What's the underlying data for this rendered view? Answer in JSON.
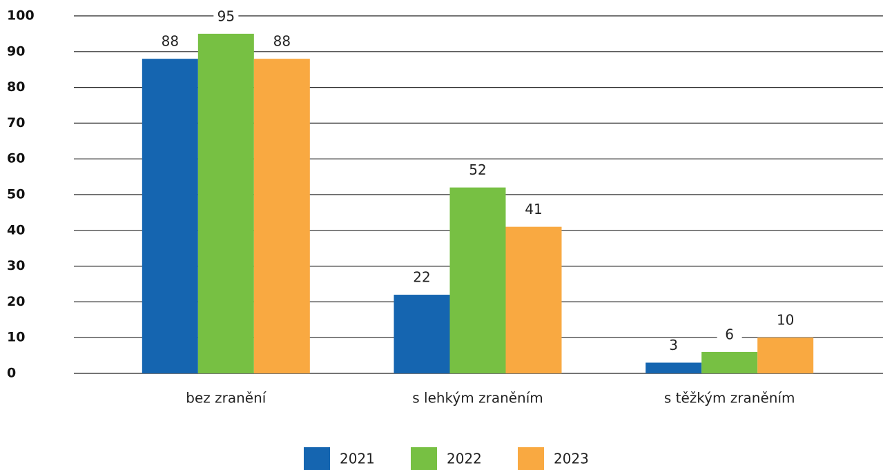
{
  "chart_data": {
    "type": "bar",
    "categories": [
      "bez zranění",
      "s lehkým zraněním",
      "s těžkým zraněním"
    ],
    "series": [
      {
        "name": "2021",
        "color": "#1565b0",
        "values": [
          88,
          22,
          3
        ]
      },
      {
        "name": "2022",
        "color": "#77c043",
        "values": [
          95,
          52,
          6
        ]
      },
      {
        "name": "2023",
        "color": "#f9a941",
        "values": [
          88,
          41,
          10
        ]
      }
    ],
    "ylim": [
      0,
      100
    ],
    "yticks": [
      0,
      10,
      20,
      30,
      40,
      50,
      60,
      70,
      80,
      90,
      100
    ],
    "grid": true
  }
}
